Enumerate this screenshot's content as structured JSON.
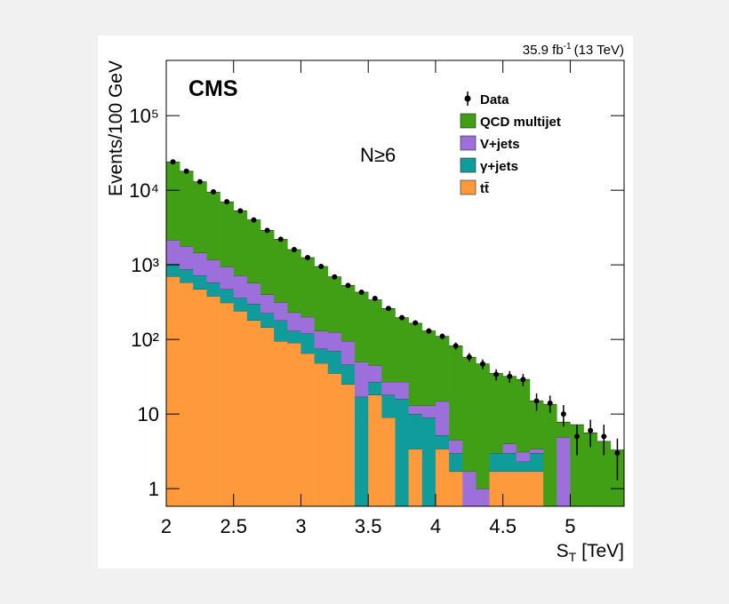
{
  "chart_data": {
    "type": "stacked_histogram",
    "experiment": "CMS",
    "lumi": {
      "before": "35.9 fb",
      "superscript": "-1",
      "after": "(13 TeV)"
    },
    "annotation": "N≥6",
    "y_label": "Events/100 GeV",
    "x_label": {
      "main": "S",
      "subscript": "T",
      "suffix": "[TeV]"
    },
    "bins": [
      2.0,
      2.1,
      2.2,
      2.3,
      2.4,
      2.5,
      2.6,
      2.7,
      2.8,
      2.9,
      3.0,
      3.1,
      3.2,
      3.3,
      3.4,
      3.5,
      3.6,
      3.7,
      3.8,
      3.9,
      4.0,
      4.1,
      4.2,
      4.3,
      4.4,
      4.5,
      4.6,
      4.7,
      4.8,
      4.9,
      5.0,
      5.1,
      5.2,
      5.3,
      5.4
    ],
    "xlim": [
      2,
      5.4
    ],
    "xticks": [
      2,
      2.5,
      3,
      3.5,
      4,
      4.5,
      5
    ],
    "ylim": [
      0.58,
      550000
    ],
    "log_y": true,
    "yticks": [
      1,
      10,
      {
        "value": 100,
        "label": "10²"
      },
      {
        "value": 1000,
        "label": "10³"
      },
      {
        "value": 10000,
        "label": "10⁴"
      },
      {
        "value": 100000,
        "label": "10⁵"
      }
    ],
    "data": {
      "name": "Data",
      "color": "#000000",
      "values": [
        24000,
        18000,
        13000,
        9500,
        7000,
        5300,
        4000,
        2900,
        2200,
        1600,
        1250,
        950,
        690,
        530,
        430,
        355,
        260,
        196,
        167,
        130,
        110,
        82,
        58,
        47,
        34,
        32,
        29,
        15,
        14,
        10,
        5,
        6,
        5,
        3
      ],
      "errors": [
        155,
        134,
        114,
        97,
        84,
        73,
        63,
        54,
        47,
        40,
        35,
        31,
        26,
        23,
        21,
        19,
        16,
        14,
        13,
        11,
        10,
        9,
        7.6,
        6.9,
        5.8,
        5.7,
        5.4,
        3.9,
        3.7,
        3.2,
        2.2,
        2.4,
        2.2,
        1.7
      ]
    },
    "series": [
      {
        "name": "QCD multijet",
        "color": "#409f14",
        "values": [
          21850,
          16220,
          11550,
          8230,
          6060,
          4580,
          3430,
          2500,
          1880,
          1370,
          1050,
          820,
          565,
          435,
          380,
          295,
          233,
          169,
          152,
          117,
          95,
          77.5,
          56,
          46,
          32,
          28,
          26,
          11.6,
          13.5,
          2.9,
          7.2,
          5.6,
          4.3,
          3.3
        ]
      },
      {
        "name": "V+jets",
        "color": "#9d6fdb",
        "values": [
          1120,
          910,
          730,
          590,
          470,
          360,
          270,
          175,
          135,
          100,
          80,
          55,
          55,
          49,
          33,
          18,
          9,
          11,
          3,
          4,
          9.6,
          1.5,
          1.7,
          1,
          0,
          1,
          0.8,
          0.4,
          0,
          4.9,
          0,
          0,
          0,
          0
        ]
      },
      {
        "name": "γ+jets",
        "color": "#119c9c",
        "values": [
          330,
          290,
          250,
          200,
          160,
          120,
          120,
          80,
          85,
          40,
          55,
          27,
          35,
          21,
          17,
          9,
          9,
          16,
          6.6,
          9,
          1.8,
          1.3,
          0,
          0,
          1.3,
          1.3,
          0.6,
          1.3,
          0,
          0,
          0,
          0,
          0,
          0
        ]
      },
      {
        "name": "tt̄",
        "color": "#ff9a3c",
        "values": [
          700,
          580,
          470,
          380,
          310,
          240,
          180,
          145,
          95,
          90,
          65,
          48,
          35,
          25,
          0,
          18,
          9,
          0,
          3.4,
          0,
          3.4,
          1.7,
          0,
          0,
          1.7,
          1.7,
          1.7,
          1.7,
          0,
          0,
          0,
          0,
          0,
          0
        ]
      }
    ]
  }
}
